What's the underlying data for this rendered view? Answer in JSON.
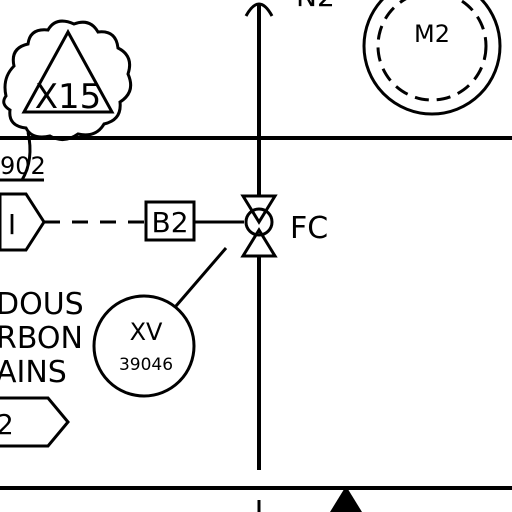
{
  "labels": {
    "hazard_tag": "X15",
    "line_number_partial": "902",
    "interface_symbol": "I",
    "block_tag": "B2",
    "fail_position": "FC",
    "instrument_function": "XV",
    "instrument_number": "39046",
    "motor_tag": "M2",
    "gas_line_partial": "N2",
    "note_line_1": "DOUS",
    "note_line_2": "RBON",
    "note_line_3": "AINS",
    "offpage_tag_partial": "2"
  },
  "colors": {
    "line": "#000000",
    "background": "#ffffff"
  }
}
